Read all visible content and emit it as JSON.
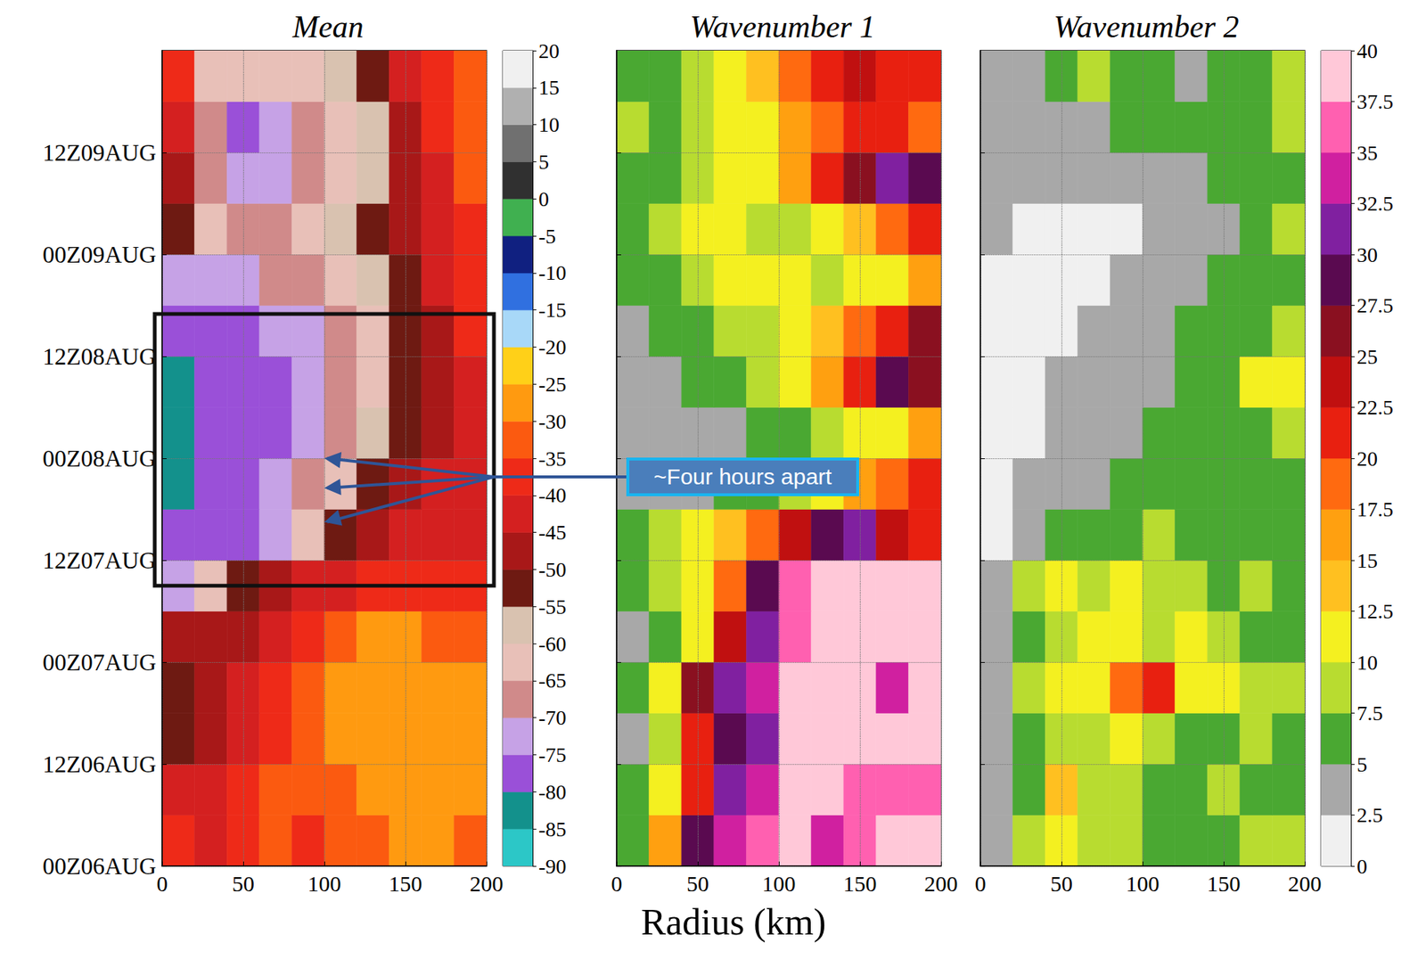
{
  "chart_data": {
    "type": "heatmap",
    "x_label": "Radius (km)",
    "xlim": [
      0,
      200
    ],
    "xticks": [
      0,
      50,
      100,
      150,
      200
    ],
    "ylim": [
      0,
      96
    ],
    "yticks": [
      {
        "value": 0,
        "label": "00Z06AUG"
      },
      {
        "value": 12,
        "label": "12Z06AUG"
      },
      {
        "value": 24,
        "label": "00Z07AUG"
      },
      {
        "value": 36,
        "label": "12Z07AUG"
      },
      {
        "value": 48,
        "label": "00Z08AUG"
      },
      {
        "value": 60,
        "label": "12Z08AUG"
      },
      {
        "value": 72,
        "label": "00Z09AUG"
      },
      {
        "value": 84,
        "label": "12Z09AUG"
      }
    ],
    "grid": true,
    "x_edges": [
      0,
      20,
      40,
      60,
      80,
      100,
      120,
      140,
      160,
      180,
      200
    ],
    "y_edges": [
      0,
      6,
      12,
      18,
      24,
      30,
      36,
      42,
      48,
      54,
      60,
      66,
      72,
      78,
      84,
      90,
      96
    ],
    "groups": [
      {
        "colorbar": {
          "range": [
            -90,
            20
          ],
          "ticks": [
            -90,
            -85,
            -80,
            -75,
            -70,
            -65,
            -60,
            -55,
            -50,
            -45,
            -40,
            -35,
            -30,
            -25,
            -20,
            -15,
            -10,
            -5,
            0,
            5,
            10,
            15,
            20
          ],
          "colors": [
            "#2cc7c7",
            "#13918c",
            "#9a50d8",
            "#c6a2e6",
            "#d08a8a",
            "#e8c0b8",
            "#d9c2b0",
            "#6e1a12",
            "#a81818",
            "#d42020",
            "#ee2a18",
            "#fb5a10",
            "#ff9a10",
            "#ffd018",
            "#a8d8f8",
            "#3070e0",
            "#102080",
            "#40b050",
            "#303030",
            "#707070",
            "#b0b0b0",
            "#f0f0f0"
          ]
        },
        "panels": [
          {
            "title": "Mean",
            "values": [
              [
                -40,
                -42,
                -38,
                -35,
                -38,
                -35,
                -33,
                -30,
                -30,
                -32
              ],
              [
                -45,
                -42,
                -40,
                -35,
                -33,
                -32,
                -30,
                -30,
                -28,
                -30
              ],
              [
                -55,
                -48,
                -45,
                -40,
                -35,
                -30,
                -28,
                -27,
                -28,
                -30
              ],
              [
                -52,
                -50,
                -45,
                -40,
                -35,
                -30,
                -27,
                -26,
                -28,
                -30
              ],
              [
                -50,
                -50,
                -48,
                -42,
                -38,
                -33,
                -30,
                -30,
                -32,
                -35
              ],
              [
                -72,
                -65,
                -55,
                -50,
                -45,
                -42,
                -40,
                -40,
                -38,
                -38
              ],
              [
                -80,
                -78,
                -76,
                -72,
                -65,
                -55,
                -50,
                -45,
                -45,
                -42
              ],
              [
                -81,
                -79,
                -78,
                -75,
                -70,
                -62,
                -55,
                -50,
                -45,
                -42
              ],
              [
                -82,
                -79,
                -78,
                -76,
                -72,
                -66,
                -60,
                -52,
                -48,
                -45
              ],
              [
                -81,
                -79,
                -78,
                -76,
                -74,
                -70,
                -62,
                -55,
                -50,
                -45
              ],
              [
                -79,
                -78,
                -77,
                -75,
                -72,
                -68,
                -62,
                -55,
                -48,
                -40
              ],
              [
                -75,
                -74,
                -72,
                -70,
                -66,
                -62,
                -57,
                -52,
                -45,
                -38
              ],
              [
                -55,
                -65,
                -68,
                -66,
                -64,
                -60,
                -55,
                -50,
                -45,
                -38
              ],
              [
                -50,
                -68,
                -74,
                -72,
                -68,
                -62,
                -56,
                -48,
                -42,
                -35
              ],
              [
                -45,
                -70,
                -76,
                -75,
                -70,
                -64,
                -58,
                -50,
                -40,
                -35
              ],
              [
                -40,
                -62,
                -65,
                -64,
                -62,
                -60,
                -55,
                -45,
                -38,
                -35
              ]
            ],
            "box": {
              "xlim": [
                0,
                200
              ],
              "ylim": [
                33,
                65
              ]
            },
            "annotation": {
              "text": "~Four hours apart",
              "points": [
                [
                  100,
                  48
                ],
                [
                  100,
                  44.5
                ],
                [
                  100,
                  40.5
                ]
              ]
            }
          }
        ]
      },
      {
        "colorbar": {
          "range": [
            0,
            40
          ],
          "ticks": [
            0,
            2.5,
            5,
            7.5,
            10,
            12.5,
            15,
            17.5,
            20,
            22.5,
            25,
            27.5,
            30,
            32.5,
            35,
            37.5,
            40
          ],
          "colors": [
            "#f0f0f0",
            "#a8a8a8",
            "#4aa832",
            "#b8dc30",
            "#f4f020",
            "#ffc020",
            "#ffa010",
            "#ff6a10",
            "#e82010",
            "#c01010",
            "#8a1020",
            "#5a0a50",
            "#8020a0",
            "#d020a0",
            "#ff60b0",
            "#ffc8d8"
          ]
        },
        "panels": [
          {
            "title": "Wavenumber 1",
            "tick_labels": "x",
            "values": [
              [
                6,
                15,
                28,
                33,
                37,
                39,
                34,
                36,
                39,
                39
              ],
              [
                5,
                10,
                22,
                30,
                34,
                39,
                39,
                36,
                37,
                36
              ],
              [
                4,
                8,
                20,
                28,
                32,
                38,
                39,
                39,
                39,
                39
              ],
              [
                6,
                12,
                25,
                30,
                34,
                39,
                39,
                39,
                33,
                39
              ],
              [
                4,
                6,
                12,
                24,
                30,
                36,
                39,
                39,
                39,
                39
              ],
              [
                5,
                8,
                12,
                18,
                28,
                35,
                39,
                39,
                39,
                39
              ],
              [
                6,
                8,
                10,
                14,
                18,
                24,
                28,
                32,
                24,
                20
              ],
              [
                4,
                3,
                4,
                5,
                7,
                9,
                12,
                15,
                18,
                20
              ],
              [
                3,
                3,
                3,
                4,
                5,
                7,
                8,
                10,
                12,
                15
              ],
              [
                3,
                4,
                5,
                6,
                8,
                12,
                15,
                22,
                28,
                25
              ],
              [
                4,
                5,
                6,
                8,
                9,
                10,
                14,
                18,
                22,
                25
              ],
              [
                6,
                7,
                8,
                10,
                12,
                10,
                9,
                10,
                12,
                15
              ],
              [
                7,
                9,
                11,
                10,
                8,
                8,
                12,
                14,
                18,
                20
              ],
              [
                5,
                6,
                8,
                10,
                12,
                16,
                20,
                26,
                30,
                28
              ],
              [
                8,
                6,
                8,
                10,
                12,
                15,
                18,
                22,
                20,
                18
              ],
              [
                5,
                7,
                9,
                12,
                14,
                18,
                20,
                24,
                22,
                20
              ]
            ]
          },
          {
            "title": "Wavenumber 2",
            "tick_labels": "x",
            "values": [
              [
                4,
                8,
                10,
                8,
                9,
                7,
                6,
                7,
                9,
                8
              ],
              [
                3,
                7,
                14,
                9,
                8,
                7,
                7,
                8,
                7,
                6
              ],
              [
                3,
                6,
                9,
                8,
                10,
                8,
                7,
                6,
                9,
                7
              ],
              [
                3,
                8,
                10,
                12,
                18,
                20,
                12,
                10,
                9,
                8
              ],
              [
                3,
                6,
                9,
                10,
                10,
                9,
                10,
                8,
                7,
                6
              ],
              [
                4,
                8,
                10,
                9,
                10,
                9,
                8,
                7,
                8,
                7
              ],
              [
                2,
                3,
                5,
                6,
                7,
                8,
                7,
                6,
                6,
                5
              ],
              [
                2,
                3,
                3,
                4,
                5,
                5,
                6,
                6,
                5,
                5
              ],
              [
                2,
                2,
                3,
                3,
                4,
                5,
                6,
                6,
                7,
                8
              ],
              [
                2,
                2,
                3,
                3,
                3,
                4,
                5,
                7,
                10,
                11
              ],
              [
                2,
                2,
                2,
                3,
                3,
                4,
                5,
                6,
                7,
                8
              ],
              [
                2,
                2,
                2,
                2,
                3,
                3,
                3,
                5,
                6,
                7
              ],
              [
                3,
                2,
                2,
                2,
                2,
                3,
                3,
                4,
                6,
                8
              ],
              [
                4,
                3,
                3,
                3,
                3,
                3,
                4,
                6,
                7,
                6
              ],
              [
                4,
                4,
                3,
                4,
                7,
                6,
                5,
                6,
                7,
                8
              ],
              [
                3,
                4,
                5,
                8,
                6,
                5,
                4,
                5,
                7,
                8
              ]
            ]
          }
        ]
      }
    ]
  }
}
